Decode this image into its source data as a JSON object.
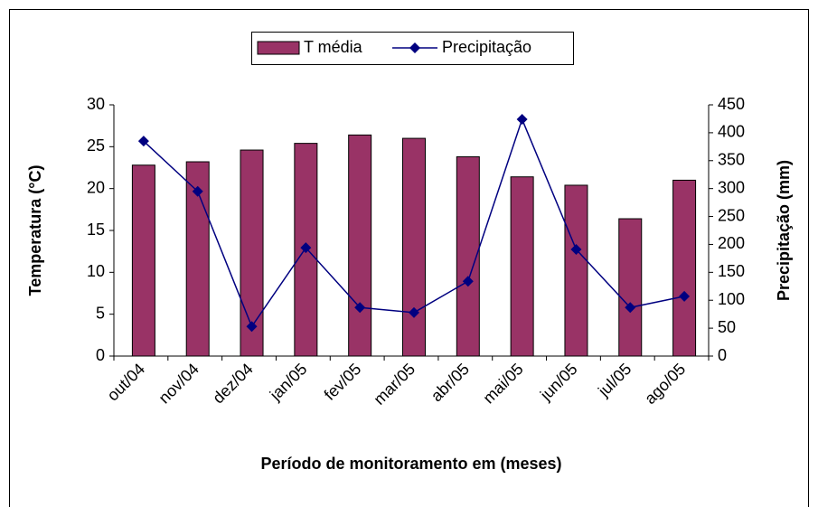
{
  "chart_data": {
    "type": "bar-line",
    "categories": [
      "out/04",
      "nov/04",
      "dez/04",
      "jan/05",
      "fev/05",
      "mar/05",
      "abr/05",
      "mai/05",
      "jun/05",
      "jul/05",
      "ago/05"
    ],
    "series": [
      {
        "name": "T média",
        "color": "#993366",
        "type": "bar",
        "values": [
          22.8,
          23.2,
          24.6,
          25.4,
          26.4,
          26.0,
          23.8,
          21.4,
          20.4,
          16.4,
          21.0
        ]
      },
      {
        "name": "Precipitação",
        "color": "#000080",
        "type": "line",
        "axis": "y2",
        "values": [
          385,
          295,
          53,
          194,
          87,
          78,
          134,
          424,
          191,
          87,
          107
        ]
      }
    ],
    "ylim": [
      0,
      30
    ],
    "yticks": [
      0,
      5,
      10,
      15,
      20,
      25,
      30
    ],
    "y2lim": [
      0,
      450
    ],
    "y2ticks": [
      0,
      50,
      100,
      150,
      200,
      250,
      300,
      350,
      400,
      450
    ],
    "y_label": "Temperatura (°C)",
    "y2_label": "Precipitação (mm)",
    "x_label": "Período de monitoramento em (meses)",
    "legend": "top"
  }
}
